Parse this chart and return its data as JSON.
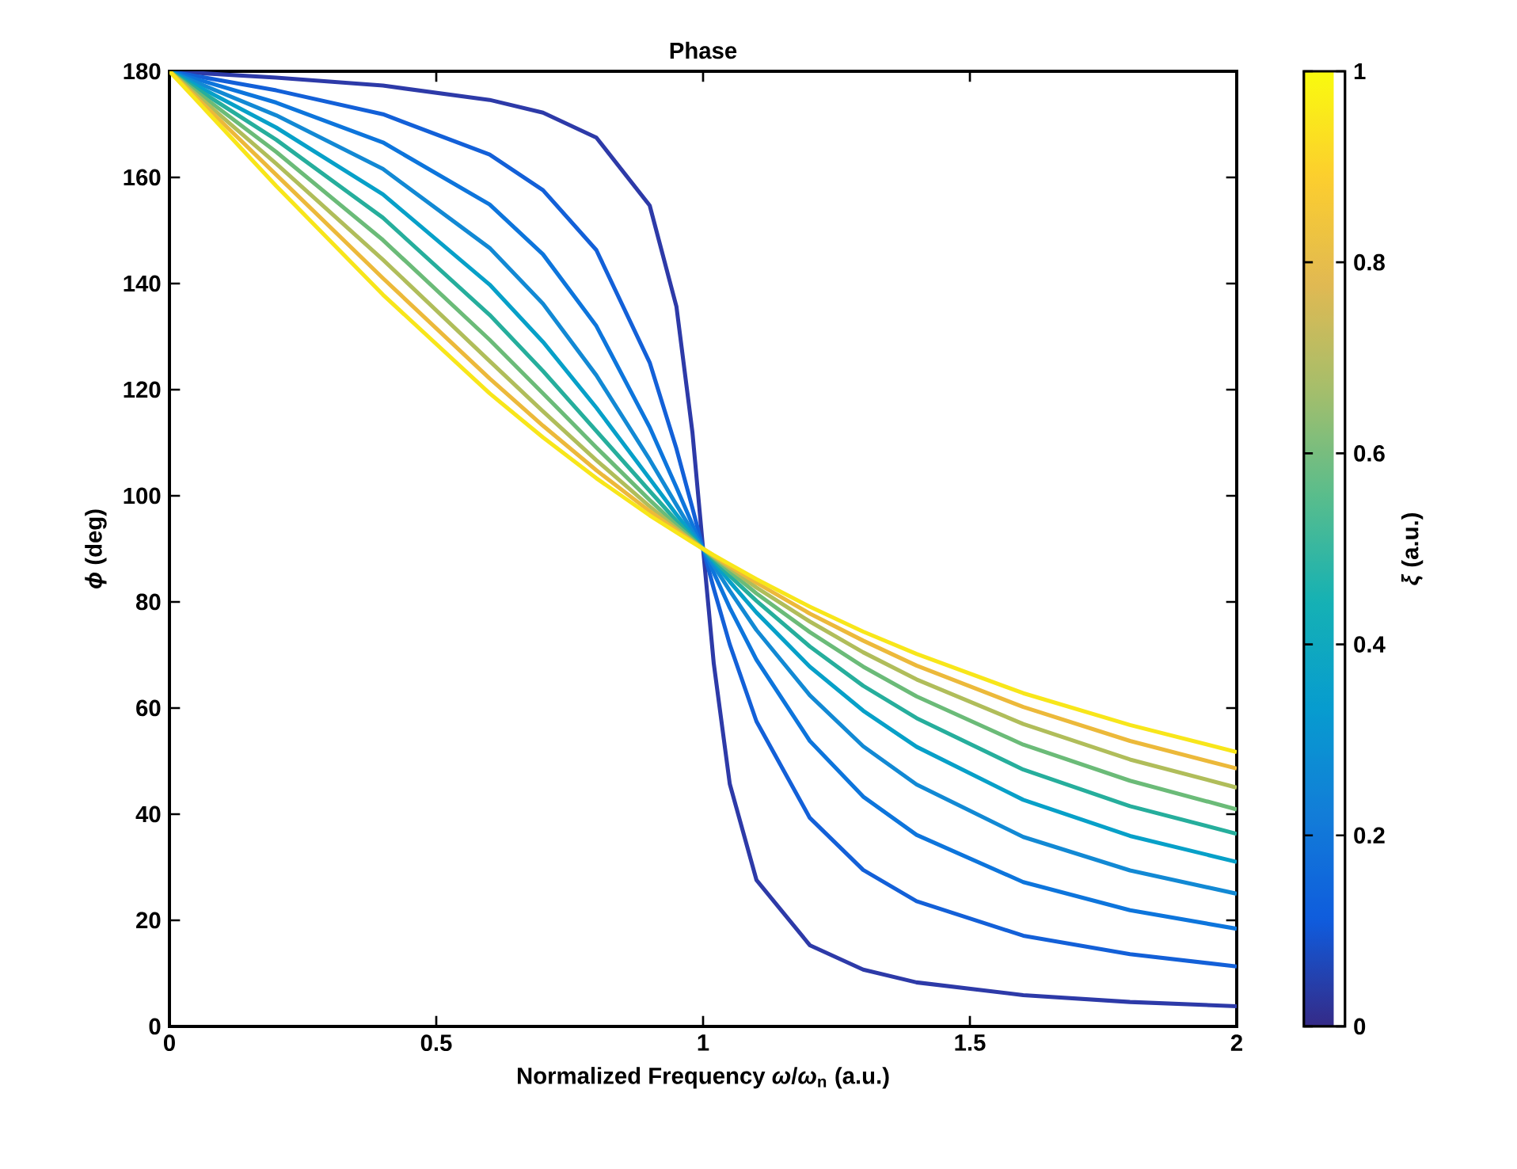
{
  "chart_data": {
    "type": "line",
    "title": "Phase",
    "xlabel": "Normalized Frequency *ω*/*ω*$_{n}$ (a.u.)",
    "ylabel": "*ϕ* (deg)",
    "clabel": "*ξ* (a.u.)",
    "xlim": [
      0,
      2
    ],
    "ylim": [
      0,
      180
    ],
    "xticks": [
      0,
      0.5,
      1,
      1.5,
      2
    ],
    "yticks": [
      0,
      20,
      40,
      60,
      80,
      100,
      120,
      140,
      160,
      180
    ],
    "clim": [
      0,
      1
    ],
    "cticks": [
      0,
      0.2,
      0.4,
      0.6,
      0.8,
      1
    ],
    "grid": false,
    "x": [
      0,
      0.2,
      0.4,
      0.6,
      0.7,
      0.8,
      0.9,
      0.95,
      0.98,
      1,
      1.02,
      1.05,
      1.1,
      1.2,
      1.3,
      1.4,
      1.6,
      1.8,
      2
    ],
    "series": [
      {
        "color": "#2d3aa8",
        "values": [
          180,
          178.8,
          177.3,
          174.6,
          172.2,
          167.5,
          154.7,
          135.7,
          112.0,
          90,
          68.4,
          45.7,
          27.6,
          15.3,
          10.7,
          8.3,
          5.9,
          4.6,
          3.8
        ]
      },
      {
        "color": "#1360d8",
        "values": [
          180,
          176.4,
          171.9,
          164.3,
          157.6,
          146.3,
          125.1,
          108.9,
          97.7,
          90,
          82.5,
          72.0,
          57.5,
          39.3,
          29.5,
          23.6,
          17.1,
          13.6,
          11.3
        ]
      },
      {
        "color": "#0d75dc",
        "values": [
          180,
          174.1,
          166.6,
          154.9,
          145.5,
          132.0,
          112.9,
          101.6,
          94.6,
          90,
          85.5,
          78.9,
          69.1,
          53.8,
          43.3,
          36.1,
          27.2,
          21.9,
          18.4
        ]
      },
      {
        "color": "#1289d4",
        "values": [
          180,
          171.7,
          161.6,
          146.7,
          136.2,
          122.7,
          106.8,
          98.3,
          93.3,
          90,
          86.8,
          82.1,
          74.7,
          62.4,
          52.8,
          45.6,
          35.7,
          29.4,
          25.0
        ]
      },
      {
        "color": "#07a0c8",
        "values": [
          180,
          169.4,
          156.8,
          139.8,
          129.0,
          116.6,
          103.2,
          96.5,
          92.6,
          90,
          87.5,
          83.8,
          78.0,
          67.8,
          59.5,
          52.7,
          42.7,
          35.9,
          31.0
        ]
      },
      {
        "color": "#26ae9c",
        "values": [
          180,
          167.1,
          152.4,
          134.1,
          123.5,
          112.2,
          100.9,
          95.3,
          92.1,
          90,
          87.9,
          84.9,
          80.2,
          71.6,
          64.2,
          58.1,
          48.4,
          41.5,
          36.3
        ]
      },
      {
        "color": "#6bbb78",
        "values": [
          180,
          164.8,
          148.2,
          129.4,
          119.3,
          109.1,
          99.2,
          94.5,
          91.8,
          90,
          88.3,
          85.7,
          81.6,
          74.3,
          67.8,
          62.2,
          53.1,
          46.3,
          40.9
        ]
      },
      {
        "color": "#b0bd5a",
        "values": [
          180,
          162.6,
          144.5,
          125.4,
          115.9,
          106.7,
          98.0,
          93.9,
          91.5,
          90,
          88.5,
          86.3,
          82.7,
          76.3,
          70.5,
          65.4,
          57.0,
          50.3,
          45.0
        ]
      },
      {
        "color": "#ecb93a",
        "values": [
          180,
          160.5,
          141.0,
          122.1,
          113.2,
          104.8,
          97.1,
          93.5,
          91.4,
          90,
          88.7,
          86.7,
          83.6,
          77.8,
          72.7,
          68.0,
          60.2,
          53.8,
          48.6
        ]
      },
      {
        "color": "#f8e61a",
        "values": [
          180,
          158.4,
          137.9,
          119.3,
          111.0,
          103.3,
          96.3,
          93.1,
          91.2,
          90,
          88.8,
          87.1,
          84.3,
          79.1,
          74.4,
          70.2,
          62.8,
          56.8,
          51.7
        ]
      }
    ]
  }
}
